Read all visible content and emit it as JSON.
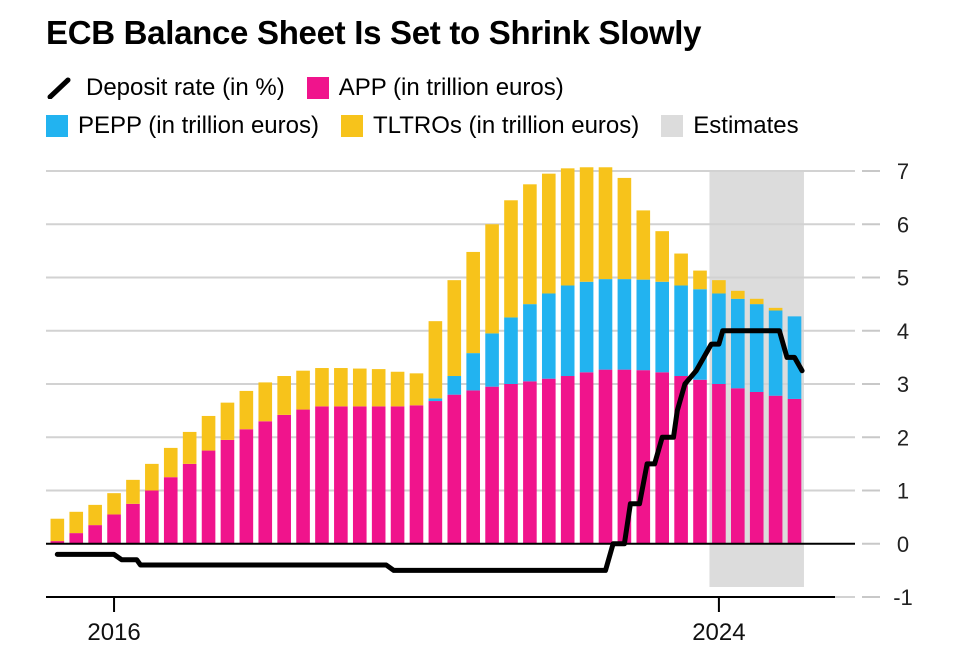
{
  "chart_data": {
    "type": "bar",
    "title": "ECB Balance Sheet Is Set to Shrink Slowly",
    "legend": [
      {
        "key": "deposit",
        "label": "Deposit rate (in %)",
        "color": "#000000",
        "kind": "line"
      },
      {
        "key": "app",
        "label": "APP (in trillion euros)",
        "color": "#f0148c",
        "kind": "bar"
      },
      {
        "key": "pepp",
        "label": "PEPP (in trillion euros)",
        "color": "#22b3f0",
        "kind": "bar"
      },
      {
        "key": "tltro",
        "label": "TLTROs (in trillion euros)",
        "color": "#f7c31b",
        "kind": "bar"
      },
      {
        "key": "estimates",
        "label": "Estimates",
        "color": "#dcdcdc",
        "kind": "band"
      }
    ],
    "stacked": true,
    "x": [
      2015.25,
      2015.5,
      2015.75,
      2016.0,
      2016.25,
      2016.5,
      2016.75,
      2017.0,
      2017.25,
      2017.5,
      2017.75,
      2018.0,
      2018.25,
      2018.5,
      2018.75,
      2019.0,
      2019.25,
      2019.5,
      2019.75,
      2020.0,
      2020.25,
      2020.5,
      2020.75,
      2021.0,
      2021.25,
      2021.5,
      2021.75,
      2022.0,
      2022.25,
      2022.5,
      2022.75,
      2023.0,
      2023.25,
      2023.5,
      2023.75,
      2024.0,
      2024.25,
      2024.5,
      2024.75,
      2025.0
    ],
    "series": [
      {
        "name": "APP (in trillion euros)",
        "key": "app",
        "values": [
          0.05,
          0.2,
          0.35,
          0.55,
          0.75,
          1.0,
          1.25,
          1.5,
          1.75,
          1.95,
          2.15,
          2.3,
          2.42,
          2.52,
          2.58,
          2.58,
          2.58,
          2.58,
          2.58,
          2.6,
          2.68,
          2.8,
          2.88,
          2.95,
          3.0,
          3.05,
          3.1,
          3.15,
          3.22,
          3.27,
          3.27,
          3.26,
          3.22,
          3.15,
          3.08,
          3.0,
          2.92,
          2.85,
          2.78,
          2.72
        ]
      },
      {
        "name": "PEPP (in trillion euros)",
        "key": "pepp",
        "values": [
          0,
          0,
          0,
          0,
          0,
          0,
          0,
          0,
          0,
          0,
          0,
          0,
          0,
          0,
          0,
          0,
          0,
          0,
          0,
          0,
          0.05,
          0.35,
          0.7,
          1.0,
          1.25,
          1.45,
          1.6,
          1.7,
          1.7,
          1.7,
          1.7,
          1.7,
          1.7,
          1.7,
          1.7,
          1.7,
          1.68,
          1.65,
          1.6,
          1.55
        ]
      },
      {
        "name": "TLTROs (in trillion euros)",
        "key": "tltro",
        "values": [
          0.42,
          0.4,
          0.38,
          0.4,
          0.45,
          0.5,
          0.55,
          0.6,
          0.65,
          0.7,
          0.72,
          0.73,
          0.73,
          0.73,
          0.72,
          0.72,
          0.71,
          0.7,
          0.65,
          0.6,
          1.45,
          1.8,
          1.9,
          2.05,
          2.2,
          2.25,
          2.25,
          2.2,
          2.15,
          2.1,
          1.9,
          1.3,
          0.95,
          0.6,
          0.35,
          0.25,
          0.15,
          0.1,
          0.05,
          0.0
        ]
      },
      {
        "name": "Deposit rate (in %)",
        "key": "deposit",
        "type": "line",
        "points": [
          [
            2015.25,
            -0.2
          ],
          [
            2015.75,
            -0.2
          ],
          [
            2016.0,
            -0.2
          ],
          [
            2016.1,
            -0.3
          ],
          [
            2016.3,
            -0.3
          ],
          [
            2016.35,
            -0.4
          ],
          [
            2019.6,
            -0.4
          ],
          [
            2019.7,
            -0.5
          ],
          [
            2022.5,
            -0.5
          ],
          [
            2022.6,
            0.0
          ],
          [
            2022.75,
            0.0
          ],
          [
            2022.83,
            0.75
          ],
          [
            2022.95,
            0.75
          ],
          [
            2023.05,
            1.5
          ],
          [
            2023.15,
            1.5
          ],
          [
            2023.25,
            2.0
          ],
          [
            2023.4,
            2.0
          ],
          [
            2023.45,
            2.5
          ],
          [
            2023.55,
            3.0
          ],
          [
            2023.7,
            3.25
          ],
          [
            2023.8,
            3.5
          ],
          [
            2023.9,
            3.75
          ],
          [
            2024.0,
            3.75
          ],
          [
            2024.05,
            4.0
          ],
          [
            2024.8,
            4.0
          ],
          [
            2024.9,
            3.5
          ],
          [
            2025.0,
            3.5
          ],
          [
            2025.1,
            3.25
          ]
        ]
      }
    ],
    "estimates_range": [
      2024.0,
      2025.0
    ],
    "x_ticks": [
      {
        "value": 2016,
        "label": "2016"
      },
      {
        "value": 2024,
        "label": "2024"
      }
    ],
    "y_ticks": [
      7,
      6,
      5,
      4,
      3,
      2,
      1,
      0,
      -1
    ],
    "ylim": [
      -1,
      7
    ],
    "xlim": [
      2015.1,
      2025.8
    ],
    "y_axis_position": "right",
    "grid": true,
    "legend_position": "top"
  }
}
